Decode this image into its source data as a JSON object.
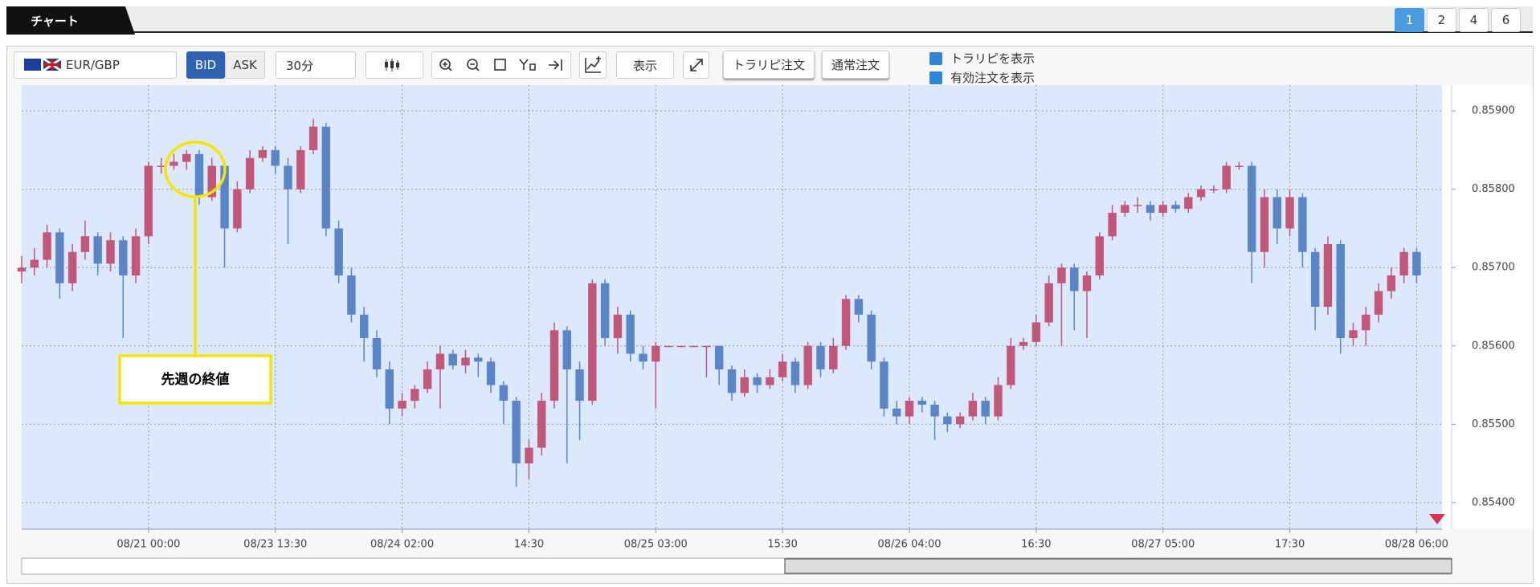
{
  "ui": {
    "tab": "チャート",
    "pages": [
      "1",
      "2",
      "4",
      "6"
    ],
    "pair": "EUR/GBP",
    "bid": "BID",
    "ask": "ASK",
    "interval": "30分",
    "display": "表示",
    "trarip_order": "トラリピ注文",
    "normal_order": "通常注文",
    "show_trarip": "トラリピを表示",
    "show_orders": "有効注文を表示"
  },
  "chart_data": {
    "type": "candlestick",
    "annotation": "先週の終値",
    "up_color": "#c2577a",
    "down_color": "#5a86c9",
    "grid": true,
    "categories": [
      null,
      null,
      null,
      null,
      null,
      null,
      null,
      null,
      null,
      null,
      "08/21 00:00",
      null,
      null,
      null,
      null,
      null,
      null,
      null,
      null,
      null,
      "08/23 13:30",
      null,
      null,
      null,
      null,
      null,
      null,
      null,
      null,
      null,
      "08/24 02:00",
      null,
      null,
      null,
      null,
      null,
      null,
      null,
      null,
      null,
      "14:30",
      null,
      null,
      null,
      null,
      null,
      null,
      null,
      null,
      null,
      "08/25 03:00",
      null,
      null,
      null,
      null,
      null,
      null,
      null,
      null,
      null,
      "15:30",
      null,
      null,
      null,
      null,
      null,
      null,
      null,
      null,
      null,
      "08/26 04:00",
      null,
      null,
      null,
      null,
      null,
      null,
      null,
      null,
      null,
      "16:30",
      null,
      null,
      null,
      null,
      null,
      null,
      null,
      null,
      null,
      "08/27 05:00",
      null,
      null,
      null,
      null,
      null,
      null,
      null,
      null,
      null,
      "17:30",
      null,
      null,
      null,
      null,
      null,
      null,
      null,
      null,
      null,
      "08/28 06:00"
    ],
    "ohlc": [
      [
        0.85695,
        0.85715,
        0.8568,
        0.857
      ],
      [
        0.857,
        0.85725,
        0.8569,
        0.8571
      ],
      [
        0.8571,
        0.85755,
        0.857,
        0.85745
      ],
      [
        0.85745,
        0.8575,
        0.8566,
        0.8568
      ],
      [
        0.8568,
        0.8573,
        0.8567,
        0.8572
      ],
      [
        0.8572,
        0.8576,
        0.8571,
        0.8574
      ],
      [
        0.8574,
        0.85745,
        0.8569,
        0.85705
      ],
      [
        0.85705,
        0.85745,
        0.85695,
        0.85735
      ],
      [
        0.85735,
        0.8574,
        0.8561,
        0.8569
      ],
      [
        0.8569,
        0.8575,
        0.8568,
        0.8574
      ],
      [
        0.8574,
        0.85835,
        0.8573,
        0.8583
      ],
      [
        0.8583,
        0.8584,
        0.8582,
        0.8583
      ],
      [
        0.8583,
        0.85845,
        0.85825,
        0.85835
      ],
      [
        0.85835,
        0.8585,
        0.85825,
        0.85845
      ],
      [
        0.85845,
        0.8585,
        0.8578,
        0.8579
      ],
      [
        0.8579,
        0.8584,
        0.85785,
        0.8583
      ],
      [
        0.8583,
        0.85835,
        0.857,
        0.8575
      ],
      [
        0.8575,
        0.8581,
        0.85745,
        0.858
      ],
      [
        0.858,
        0.8585,
        0.85795,
        0.8584
      ],
      [
        0.8584,
        0.85855,
        0.85835,
        0.8585
      ],
      [
        0.8585,
        0.85855,
        0.8582,
        0.8583
      ],
      [
        0.8583,
        0.8584,
        0.8573,
        0.858
      ],
      [
        0.858,
        0.85855,
        0.85795,
        0.8585
      ],
      [
        0.8585,
        0.8589,
        0.85845,
        0.8588
      ],
      [
        0.8588,
        0.85885,
        0.8574,
        0.8575
      ],
      [
        0.8575,
        0.8576,
        0.8568,
        0.8569
      ],
      [
        0.8569,
        0.857,
        0.8563,
        0.8564
      ],
      [
        0.8564,
        0.8565,
        0.8558,
        0.8561
      ],
      [
        0.8561,
        0.8562,
        0.8556,
        0.8557
      ],
      [
        0.8557,
        0.8558,
        0.855,
        0.8552
      ],
      [
        0.8552,
        0.8554,
        0.8551,
        0.8553
      ],
      [
        0.8553,
        0.8555,
        0.8552,
        0.85545
      ],
      [
        0.85545,
        0.8558,
        0.8554,
        0.8557
      ],
      [
        0.8557,
        0.856,
        0.8552,
        0.8559
      ],
      [
        0.8559,
        0.85595,
        0.8557,
        0.85575
      ],
      [
        0.85575,
        0.85595,
        0.85565,
        0.85585
      ],
      [
        0.85585,
        0.8559,
        0.8556,
        0.8558
      ],
      [
        0.8558,
        0.85585,
        0.8554,
        0.8555
      ],
      [
        0.8555,
        0.85555,
        0.855,
        0.8553
      ],
      [
        0.8553,
        0.85535,
        0.8542,
        0.8545
      ],
      [
        0.8545,
        0.8548,
        0.8543,
        0.8547
      ],
      [
        0.8547,
        0.8554,
        0.8546,
        0.8553
      ],
      [
        0.8553,
        0.8563,
        0.8552,
        0.8562
      ],
      [
        0.8562,
        0.85625,
        0.8545,
        0.8557
      ],
      [
        0.8557,
        0.8558,
        0.8548,
        0.8553
      ],
      [
        0.8553,
        0.85685,
        0.85525,
        0.8568
      ],
      [
        0.8568,
        0.85685,
        0.856,
        0.8561
      ],
      [
        0.8561,
        0.8565,
        0.8559,
        0.8564
      ],
      [
        0.8564,
        0.85645,
        0.8558,
        0.8559
      ],
      [
        0.8559,
        0.856,
        0.8557,
        0.8558
      ],
      [
        0.8558,
        0.85605,
        0.8552,
        0.856
      ],
      [
        0.856,
        0.856,
        0.856,
        0.856
      ],
      [
        0.856,
        0.856,
        0.856,
        0.856
      ],
      [
        0.856,
        0.856,
        0.856,
        0.856
      ],
      [
        0.856,
        0.856,
        0.8556,
        0.856
      ],
      [
        0.856,
        0.856,
        0.8555,
        0.8557
      ],
      [
        0.8557,
        0.85575,
        0.8553,
        0.8554
      ],
      [
        0.8554,
        0.8557,
        0.85535,
        0.8556
      ],
      [
        0.8556,
        0.85565,
        0.8554,
        0.8555
      ],
      [
        0.8555,
        0.8557,
        0.85545,
        0.8556
      ],
      [
        0.8556,
        0.8559,
        0.85555,
        0.8558
      ],
      [
        0.8558,
        0.85585,
        0.8554,
        0.8555
      ],
      [
        0.8555,
        0.85605,
        0.85545,
        0.856
      ],
      [
        0.856,
        0.85605,
        0.8556,
        0.8557
      ],
      [
        0.8557,
        0.8561,
        0.85565,
        0.856
      ],
      [
        0.856,
        0.85665,
        0.85595,
        0.8566
      ],
      [
        0.8566,
        0.85665,
        0.8563,
        0.8564
      ],
      [
        0.8564,
        0.85645,
        0.8557,
        0.8558
      ],
      [
        0.8558,
        0.85585,
        0.8551,
        0.8552
      ],
      [
        0.8552,
        0.8553,
        0.855,
        0.8551
      ],
      [
        0.8551,
        0.85535,
        0.855,
        0.8553
      ],
      [
        0.8553,
        0.85535,
        0.85515,
        0.85525
      ],
      [
        0.85525,
        0.8553,
        0.8548,
        0.8551
      ],
      [
        0.8551,
        0.85515,
        0.8549,
        0.855
      ],
      [
        0.855,
        0.85515,
        0.85495,
        0.8551
      ],
      [
        0.8551,
        0.8554,
        0.85505,
        0.8553
      ],
      [
        0.8553,
        0.85535,
        0.855,
        0.8551
      ],
      [
        0.8551,
        0.8556,
        0.85505,
        0.8555
      ],
      [
        0.8555,
        0.8561,
        0.85545,
        0.856
      ],
      [
        0.856,
        0.8561,
        0.85595,
        0.85605
      ],
      [
        0.85605,
        0.8564,
        0.856,
        0.8563
      ],
      [
        0.8563,
        0.8569,
        0.85625,
        0.8568
      ],
      [
        0.8568,
        0.85705,
        0.856,
        0.857
      ],
      [
        0.857,
        0.85705,
        0.8562,
        0.8567
      ],
      [
        0.8567,
        0.85695,
        0.8561,
        0.8569
      ],
      [
        0.8569,
        0.85745,
        0.85685,
        0.8574
      ],
      [
        0.8574,
        0.8578,
        0.85735,
        0.8577
      ],
      [
        0.8577,
        0.85785,
        0.85765,
        0.8578
      ],
      [
        0.8578,
        0.8579,
        0.8577,
        0.8578
      ],
      [
        0.8578,
        0.85785,
        0.8576,
        0.8577
      ],
      [
        0.8577,
        0.85785,
        0.85765,
        0.8578
      ],
      [
        0.8578,
        0.85785,
        0.8577,
        0.85775
      ],
      [
        0.85775,
        0.85795,
        0.8577,
        0.8579
      ],
      [
        0.8579,
        0.85805,
        0.85785,
        0.858
      ],
      [
        0.858,
        0.85805,
        0.85795,
        0.858
      ],
      [
        0.858,
        0.85835,
        0.85795,
        0.8583
      ],
      [
        0.8583,
        0.85835,
        0.85825,
        0.8583
      ],
      [
        0.8583,
        0.85835,
        0.8568,
        0.8572
      ],
      [
        0.8572,
        0.858,
        0.857,
        0.8579
      ],
      [
        0.8579,
        0.858,
        0.8573,
        0.8575
      ],
      [
        0.8575,
        0.858,
        0.8574,
        0.8579
      ],
      [
        0.8579,
        0.85795,
        0.857,
        0.8572
      ],
      [
        0.8572,
        0.85725,
        0.8562,
        0.8565
      ],
      [
        0.8565,
        0.8574,
        0.8564,
        0.8573
      ],
      [
        0.8573,
        0.85735,
        0.8559,
        0.8561
      ],
      [
        0.8561,
        0.8563,
        0.856,
        0.8562
      ],
      [
        0.8562,
        0.8565,
        0.856,
        0.8564
      ],
      [
        0.8564,
        0.8568,
        0.8563,
        0.8567
      ],
      [
        0.8567,
        0.857,
        0.8566,
        0.8569
      ],
      [
        0.8569,
        0.85725,
        0.8568,
        0.8572
      ],
      [
        0.8572,
        0.85725,
        0.8568,
        0.8569
      ]
    ],
    "ylim": [
      0.85366,
      0.85933
    ],
    "yticks": [
      {
        "value": 0.854,
        "label": "0.85400"
      },
      {
        "value": 0.855,
        "label": "0.85500"
      },
      {
        "value": 0.856,
        "label": "0.85600"
      },
      {
        "value": 0.857,
        "label": "0.85700"
      },
      {
        "value": 0.858,
        "label": "0.85800"
      },
      {
        "value": 0.859,
        "label": "0.85900"
      }
    ]
  }
}
